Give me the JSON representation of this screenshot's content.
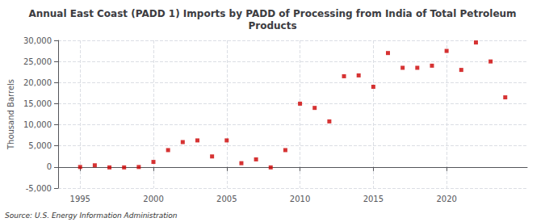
{
  "chart_data": {
    "type": "scatter",
    "title": "Annual East Coast (PADD 1) Imports by PADD of Processing from India of Total Petroleum\nProducts",
    "ylabel": "Thousand Barrels",
    "annotations": [
      "Source: U.S. Energy Information Administration"
    ],
    "x": [
      1995,
      1996,
      1997,
      1998,
      1999,
      2000,
      2001,
      2002,
      2003,
      2004,
      2005,
      2006,
      2007,
      2008,
      2009,
      2010,
      2011,
      2012,
      2013,
      2014,
      2015,
      2016,
      2017,
      2018,
      2019,
      2020,
      2021,
      2022,
      2023,
      2024
    ],
    "values": [
      0,
      400,
      -100,
      -100,
      0,
      1200,
      4000,
      5900,
      6300,
      2500,
      6300,
      900,
      1800,
      -100,
      4000,
      15000,
      14000,
      10800,
      21500,
      21700,
      19000,
      27000,
      23500,
      23500,
      24000,
      27500,
      23000,
      29500,
      25000,
      16500
    ],
    "color": "#cc0000",
    "marker": "square",
    "xlim": [
      1993.5,
      2025.5
    ],
    "xticks": [
      1995,
      2000,
      2005,
      2010,
      2015,
      2020
    ],
    "ylim": [
      -5000,
      30000
    ],
    "yticks": [
      {
        "value": -5000,
        "label": "-5,000"
      },
      0,
      {
        "value": 5000,
        "label": "5,000"
      },
      {
        "value": 10000,
        "label": "10,000"
      },
      {
        "value": 15000,
        "label": "15,000"
      },
      {
        "value": 20000,
        "label": "20,000"
      },
      {
        "value": 25000,
        "label": "25,000"
      },
      {
        "value": 30000,
        "label": "30,000"
      }
    ],
    "grid": true
  }
}
